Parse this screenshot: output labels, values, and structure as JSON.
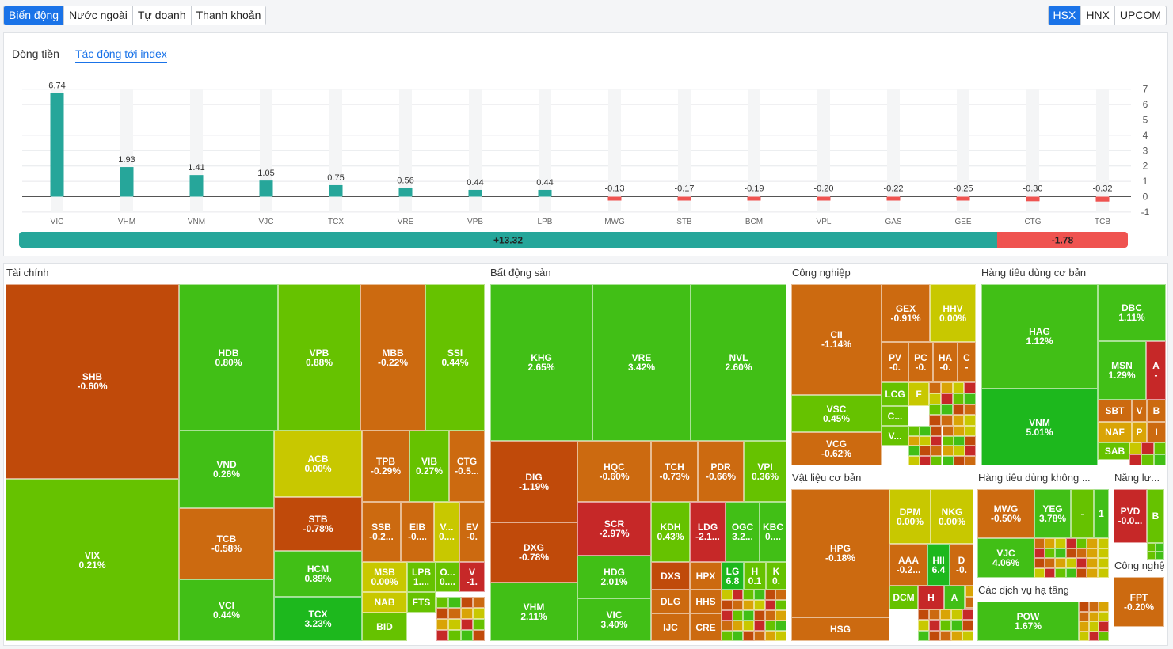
{
  "top_tabs": [
    "Biến động",
    "Nước ngoài",
    "Tự doanh",
    "Thanh khoản"
  ],
  "top_tabs_active": "Biến động",
  "exchange_tabs": [
    "HSX",
    "HNX",
    "UPCOM"
  ],
  "exchange_tabs_active": "HSX",
  "chart_panel": {
    "subtabs": [
      "Dòng tiền",
      "Tác động tới index"
    ],
    "active_subtab": "Tác động tới index"
  },
  "chart_data": {
    "type": "bar",
    "categories": [
      "VIC",
      "VHM",
      "VNM",
      "VJC",
      "TCX",
      "VRE",
      "VPB",
      "LPB",
      "MWG",
      "STB",
      "BCM",
      "VPL",
      "GAS",
      "GEE",
      "CTG",
      "TCB"
    ],
    "values": [
      6.74,
      1.93,
      1.41,
      1.05,
      0.75,
      0.56,
      0.44,
      0.44,
      -0.13,
      -0.17,
      -0.19,
      -0.2,
      -0.22,
      -0.25,
      -0.3,
      -0.32
    ],
    "value_labels": [
      "6.74",
      "1.93",
      "1.41",
      "1.05",
      "0.75",
      "0.56",
      "0.44",
      "0.44",
      "-0.13",
      "-0.17",
      "-0.19",
      "-0.20",
      "-0.22",
      "-0.25",
      "-0.30",
      "-0.32"
    ],
    "yticks": [
      7,
      6,
      5,
      4,
      3,
      2,
      1,
      0,
      -1
    ],
    "ylim": [
      -1,
      7
    ],
    "y_axis_side": "right",
    "grid": true,
    "positive_color": "#26a69a",
    "negative_color": "#ef5350",
    "summary": {
      "positive_label": "+13.32",
      "negative_label": "-1.78",
      "positive_value": 13.32,
      "negative_value": 1.78
    }
  },
  "treemap": {
    "colors": {
      "red": "#c62828",
      "dark_orange": "#c04a0a",
      "orange": "#cc6a10",
      "yellow": "#c8c800",
      "lime": "#66c200",
      "green": "#41bf16",
      "bright_green": "#1db81d",
      "amber": "#d9a406"
    },
    "sectors": [
      {
        "name": "Tài chính"
      },
      {
        "name": "Bất động sản"
      },
      {
        "name": "Công nghiệp"
      },
      {
        "name": "Hàng tiêu dùng cơ bản"
      },
      {
        "name": "Vật liệu cơ bản"
      },
      {
        "name": "Hàng tiêu dùng không ..."
      },
      {
        "name": "Năng lư..."
      },
      {
        "name": "Các dịch vụ hạ tầng"
      },
      {
        "name": "Công nghệ"
      }
    ],
    "tiles": [
      {
        "s": "SHB",
        "p": "-0.60%",
        "c": "dark_orange"
      },
      {
        "s": "VIX",
        "p": "0.21%",
        "c": "lime"
      },
      {
        "s": "HDB",
        "p": "0.80%",
        "c": "green"
      },
      {
        "s": "VPB",
        "p": "0.88%",
        "c": "lime"
      },
      {
        "s": "MBB",
        "p": "-0.22%",
        "c": "orange"
      },
      {
        "s": "SSI",
        "p": "0.44%",
        "c": "lime"
      },
      {
        "s": "VND",
        "p": "0.26%",
        "c": "green"
      },
      {
        "s": "ACB",
        "p": "0.00%",
        "c": "yellow"
      },
      {
        "s": "TPB",
        "p": "-0.29%",
        "c": "orange"
      },
      {
        "s": "VIB",
        "p": "0.27%",
        "c": "lime"
      },
      {
        "s": "CTG",
        "p": "-0.5...",
        "c": "orange"
      },
      {
        "s": "TCB",
        "p": "-0.58%",
        "c": "orange"
      },
      {
        "s": "STB",
        "p": "-0.78%",
        "c": "dark_orange"
      },
      {
        "s": "SSB",
        "p": "-0.2...",
        "c": "orange"
      },
      {
        "s": "EIB",
        "p": "-0....",
        "c": "orange"
      },
      {
        "s": "V...",
        "p": "0....",
        "c": "yellow"
      },
      {
        "s": "EV",
        "p": "-0.",
        "c": "orange"
      },
      {
        "s": "HCM",
        "p": "0.89%",
        "c": "green"
      },
      {
        "s": "MSB",
        "p": "0.00%",
        "c": "yellow"
      },
      {
        "s": "LPB",
        "p": "1....",
        "c": "lime"
      },
      {
        "s": "O...",
        "p": "0....",
        "c": "lime"
      },
      {
        "s": "V",
        "p": "-1.",
        "c": "red"
      },
      {
        "s": "VCI",
        "p": "0.44%",
        "c": "green"
      },
      {
        "s": "TCX",
        "p": "3.23%",
        "c": "bright_green"
      },
      {
        "s": "NAB",
        "p": "",
        "c": "yellow"
      },
      {
        "s": "FTS",
        "p": "",
        "c": "lime"
      },
      {
        "s": "BID",
        "p": "",
        "c": "lime"
      },
      {
        "s": "KHG",
        "p": "2.65%",
        "c": "green"
      },
      {
        "s": "VRE",
        "p": "3.42%",
        "c": "green"
      },
      {
        "s": "NVL",
        "p": "2.60%",
        "c": "green"
      },
      {
        "s": "DIG",
        "p": "-1.19%",
        "c": "dark_orange"
      },
      {
        "s": "HQC",
        "p": "-0.60%",
        "c": "orange"
      },
      {
        "s": "TCH",
        "p": "-0.73%",
        "c": "orange"
      },
      {
        "s": "PDR",
        "p": "-0.66%",
        "c": "orange"
      },
      {
        "s": "VPI",
        "p": "0.36%",
        "c": "lime"
      },
      {
        "s": "SCR",
        "p": "-2.97%",
        "c": "red"
      },
      {
        "s": "KDH",
        "p": "0.43%",
        "c": "lime"
      },
      {
        "s": "LDG",
        "p": "-2.1...",
        "c": "red"
      },
      {
        "s": "OGC",
        "p": "3.2...",
        "c": "green"
      },
      {
        "s": "KBC",
        "p": "0....",
        "c": "green"
      },
      {
        "s": "DXG",
        "p": "-0.78%",
        "c": "dark_orange"
      },
      {
        "s": "HDG",
        "p": "2.01%",
        "c": "green"
      },
      {
        "s": "DXS",
        "p": "",
        "c": "dark_orange"
      },
      {
        "s": "HPX",
        "p": "",
        "c": "orange"
      },
      {
        "s": "LG",
        "p": "6.8",
        "c": "bright_green"
      },
      {
        "s": "H",
        "p": "0.1",
        "c": "lime"
      },
      {
        "s": "K",
        "p": "0.",
        "c": "lime"
      },
      {
        "s": "VHM",
        "p": "2.11%",
        "c": "green"
      },
      {
        "s": "VIC",
        "p": "3.40%",
        "c": "green"
      },
      {
        "s": "DLG",
        "p": "",
        "c": "orange"
      },
      {
        "s": "HHS",
        "p": "",
        "c": "orange"
      },
      {
        "s": "IJC",
        "p": "",
        "c": "orange"
      },
      {
        "s": "CRE",
        "p": "",
        "c": "orange"
      },
      {
        "s": "CII",
        "p": "-1.14%",
        "c": "orange"
      },
      {
        "s": "GEX",
        "p": "-0.91%",
        "c": "orange"
      },
      {
        "s": "HHV",
        "p": "0.00%",
        "c": "yellow"
      },
      {
        "s": "PV",
        "p": "-0.",
        "c": "orange"
      },
      {
        "s": "PC",
        "p": "-0.",
        "c": "orange"
      },
      {
        "s": "HA",
        "p": "-0.",
        "c": "orange"
      },
      {
        "s": "C",
        "p": "-",
        "c": "orange"
      },
      {
        "s": "LCG",
        "p": "",
        "c": "lime"
      },
      {
        "s": "F",
        "p": "",
        "c": "yellow"
      },
      {
        "s": "C...",
        "p": "",
        "c": "lime"
      },
      {
        "s": "V...",
        "p": "",
        "c": "lime"
      },
      {
        "s": "VSC",
        "p": "0.45%",
        "c": "lime"
      },
      {
        "s": "VCG",
        "p": "-0.62%",
        "c": "orange"
      },
      {
        "s": "HAG",
        "p": "1.12%",
        "c": "green"
      },
      {
        "s": "DBC",
        "p": "1.11%",
        "c": "green"
      },
      {
        "s": "MSN",
        "p": "1.29%",
        "c": "green"
      },
      {
        "s": "A",
        "p": "-",
        "c": "red"
      },
      {
        "s": "VNM",
        "p": "5.01%",
        "c": "bright_green"
      },
      {
        "s": "SBT",
        "p": "",
        "c": "orange"
      },
      {
        "s": "V",
        "p": "",
        "c": "orange"
      },
      {
        "s": "B",
        "p": "",
        "c": "orange"
      },
      {
        "s": "NAF",
        "p": "",
        "c": "amber"
      },
      {
        "s": "P",
        "p": "",
        "c": "amber"
      },
      {
        "s": "I",
        "p": "",
        "c": "orange"
      },
      {
        "s": "SAB",
        "p": "",
        "c": "lime"
      },
      {
        "s": "HPG",
        "p": "-0.18%",
        "c": "orange"
      },
      {
        "s": "DPM",
        "p": "0.00%",
        "c": "yellow"
      },
      {
        "s": "NKG",
        "p": "0.00%",
        "c": "yellow"
      },
      {
        "s": "AAA",
        "p": "-0.2...",
        "c": "orange"
      },
      {
        "s": "HII",
        "p": "6.4",
        "c": "bright_green"
      },
      {
        "s": "D",
        "p": "-0.",
        "c": "orange"
      },
      {
        "s": "DCM",
        "p": "",
        "c": "lime"
      },
      {
        "s": "H",
        "p": "",
        "c": "red"
      },
      {
        "s": "A",
        "p": "",
        "c": "green"
      },
      {
        "s": "HSG",
        "p": "",
        "c": "orange"
      },
      {
        "s": "MWG",
        "p": "-0.50%",
        "c": "orange"
      },
      {
        "s": "YEG",
        "p": "3.78%",
        "c": "green"
      },
      {
        "s": "-",
        "p": "",
        "c": "lime"
      },
      {
        "s": "1",
        "p": "",
        "c": "green"
      },
      {
        "s": "VJC",
        "p": "4.06%",
        "c": "green"
      },
      {
        "s": "PVD",
        "p": "-0.0...",
        "c": "red"
      },
      {
        "s": "B",
        "p": "",
        "c": "lime"
      },
      {
        "s": "POW",
        "p": "1.67%",
        "c": "green"
      },
      {
        "s": "FPT",
        "p": "-0.20%",
        "c": "orange"
      }
    ]
  }
}
